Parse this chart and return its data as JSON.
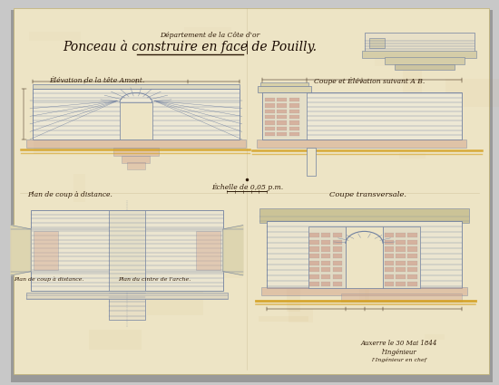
{
  "outer_bg": "#c8c8c8",
  "paper_color": "#ede4c5",
  "paper_edge": "#c0b070",
  "ink_color": "#2e1a08",
  "blue_line": "#7080a0",
  "blue_light": "#9aacbc",
  "red_accent": "#c07060",
  "yellow_accent": "#d4a020",
  "pink_accent": "#d4a890",
  "stone_fill": "#ddd5b0",
  "title_line1": "Département de la Côte d'or",
  "title_line2": "Ponceau à construire en face de Pouilly.",
  "label_elev": "Élévation de la tête Amont.",
  "label_coupe_ab": "Coupe et Élévation suivant A B.",
  "label_plan": "Plan de coup à distance.",
  "label_coupe_tr": "Coupe transversale.",
  "label_echelle": "Échelle de 0,05 p.m.",
  "label_date": "Auxerre le 30 Mai 1844",
  "label_ing1": "l'Ingénieur",
  "label_ing2": "l'Ingénieur en chef",
  "figsize": [
    5.5,
    4.25
  ],
  "dpi": 100
}
